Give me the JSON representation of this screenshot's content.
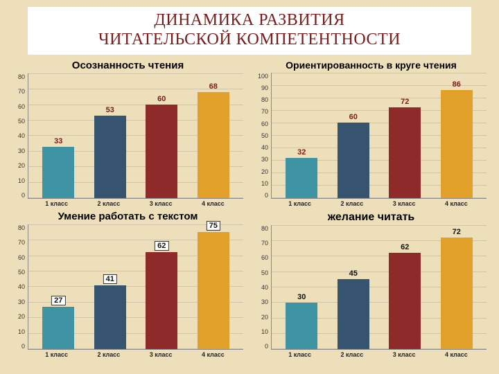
{
  "page": {
    "background_color": "#ecdfba",
    "title_line1": "ДИНАМИКА  РАЗВИТИЯ",
    "title_line2": "ЧИТАТЕЛЬСКОЙ  КОМПЕТЕНТНОСТИ",
    "title_color": "#7a1b1b",
    "title_fontsize": 24
  },
  "categories": [
    "1 класс",
    "2 класс",
    "3 класс",
    "4 класс"
  ],
  "bar_colors": [
    "#3f94a3",
    "#36536f",
    "#8f2a2a",
    "#e0a02a"
  ],
  "charts": {
    "c1": {
      "title": "Осознанность чтения",
      "title_fontsize": 15,
      "values": [
        33,
        53,
        60,
        68
      ],
      "ymax": 80,
      "ytick_step": 10,
      "label_color": "#7a1b1b",
      "boxed_labels": false
    },
    "c2": {
      "title": "Ориентированность в круге чтения",
      "title_fontsize": 14,
      "values": [
        32,
        60,
        72,
        86
      ],
      "ymax": 100,
      "ytick_step": 10,
      "label_color": "#7a1b1b",
      "boxed_labels": false
    },
    "c3": {
      "title": "Умение работать с текстом",
      "title_fontsize": 15,
      "values": [
        27,
        41,
        62,
        75
      ],
      "ymax": 80,
      "ytick_step": 10,
      "label_color": "#111",
      "boxed_labels": true
    },
    "c4": {
      "title": "желание читать",
      "title_fontsize": 16,
      "values": [
        30,
        45,
        62,
        72
      ],
      "ymax": 80,
      "ytick_step": 10,
      "label_color": "#111",
      "boxed_labels": false
    }
  }
}
